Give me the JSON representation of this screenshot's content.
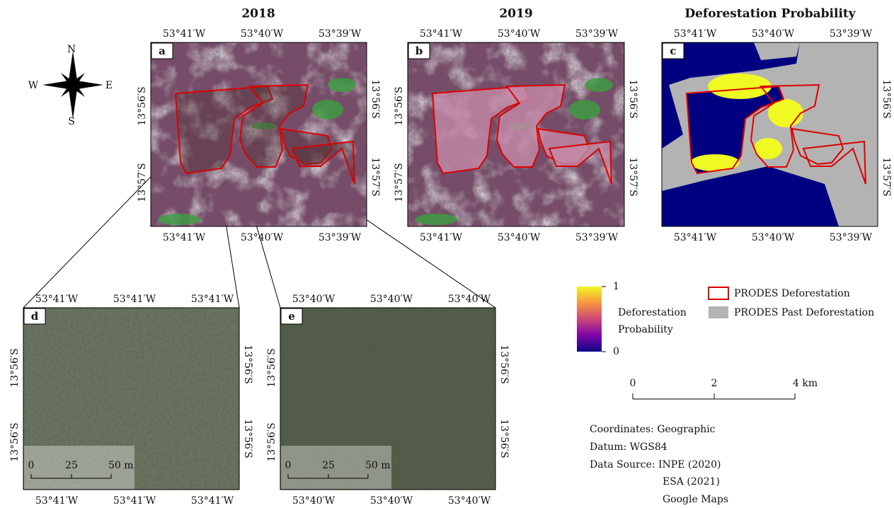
{
  "titles": [
    "2018",
    "2019",
    "Deforestation Probability"
  ],
  "compass": [
    "N",
    "E",
    "S",
    "W"
  ],
  "panels": [
    {
      "letter": "a",
      "top": [
        "53°41′W",
        "53°40′W",
        "53°39′W"
      ],
      "bottom": [
        "53°41′W",
        "53°40′W",
        "53°39′W"
      ],
      "left": [
        "13°56′S",
        "13°57′S"
      ],
      "right": [
        "13°56′S",
        "13°57′S"
      ]
    },
    {
      "letter": "b",
      "top": [
        "53°41′W",
        "53°40′W",
        "53°39′W"
      ],
      "bottom": [
        "53°41′W",
        "53°40′W",
        "53°39′W"
      ],
      "left": [
        "13°56′S",
        "13°57′S"
      ],
      "right": [
        "13°56′S",
        "13°57′S"
      ]
    },
    {
      "letter": "c",
      "top": [
        "53°41′W",
        "53°40′W",
        "53°39′W"
      ],
      "bottom": [
        "53°41′W",
        "53°40′W",
        "53°39′W"
      ],
      "right": [
        "13°56′S",
        "13°57′S"
      ]
    },
    {
      "letter": "d",
      "top": [
        "53°41′W",
        "53°41′W",
        "53°41′W"
      ],
      "bottom": [
        "53°41′W",
        "53°41′W",
        "53°41′W"
      ],
      "left": [
        "13°56′S",
        "13°56′S"
      ],
      "right": [
        "13°56′S",
        "13°56′S"
      ],
      "scale": [
        "0",
        "25",
        "50 m"
      ]
    },
    {
      "letter": "e",
      "top": [
        "53°40′W",
        "53°40′W",
        "53°40′W"
      ],
      "bottom": [
        "53°40′W",
        "53°40′W",
        "53°40′W"
      ],
      "left": [
        "13°56′S",
        "13°56′S"
      ],
      "right": [
        "13°56′S",
        "13°56′S"
      ],
      "scale": [
        "0",
        "25",
        "50 m"
      ]
    }
  ],
  "colorbar": {
    "label": [
      "Deforestation",
      "Probability"
    ],
    "ticks": [
      0,
      1
    ]
  },
  "legend": [
    "PRODES Deforestation",
    "PRODES Past Deforestation"
  ],
  "scalebar": [
    "0",
    "2",
    "4 km"
  ],
  "notes": [
    "Coordinates: Geographic",
    "Datum: WGS84",
    "Data Source: INPE (2020)",
    "ESA (2021)",
    "Google Maps"
  ]
}
